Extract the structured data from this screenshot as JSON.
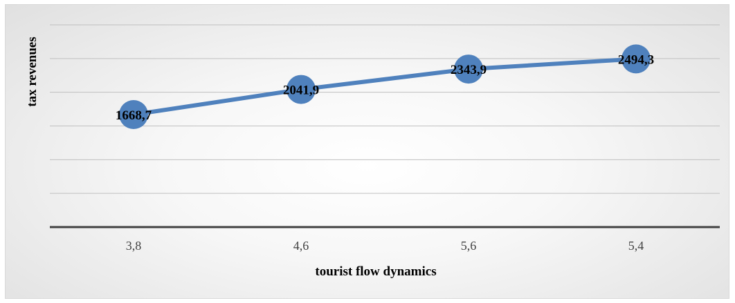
{
  "chart_data": {
    "type": "line",
    "categories": [
      "3,8",
      "4,6",
      "5,6",
      "5,4"
    ],
    "series": [
      {
        "values": [
          1668.7,
          2041.9,
          2343.9,
          2494.3
        ]
      }
    ],
    "data_labels": [
      "1668,7",
      "2041,9",
      "2343,9",
      "2494,3"
    ],
    "title": "",
    "xlabel": "tourist flow dynamics",
    "ylabel": "tax revenues",
    "ylim": [
      0,
      3000
    ],
    "grid": true,
    "legend": "none",
    "colors": {
      "line": "#4f81bd",
      "marker": "#4f81bd",
      "grid": "#bfbfbf",
      "axis": "#404040"
    }
  }
}
